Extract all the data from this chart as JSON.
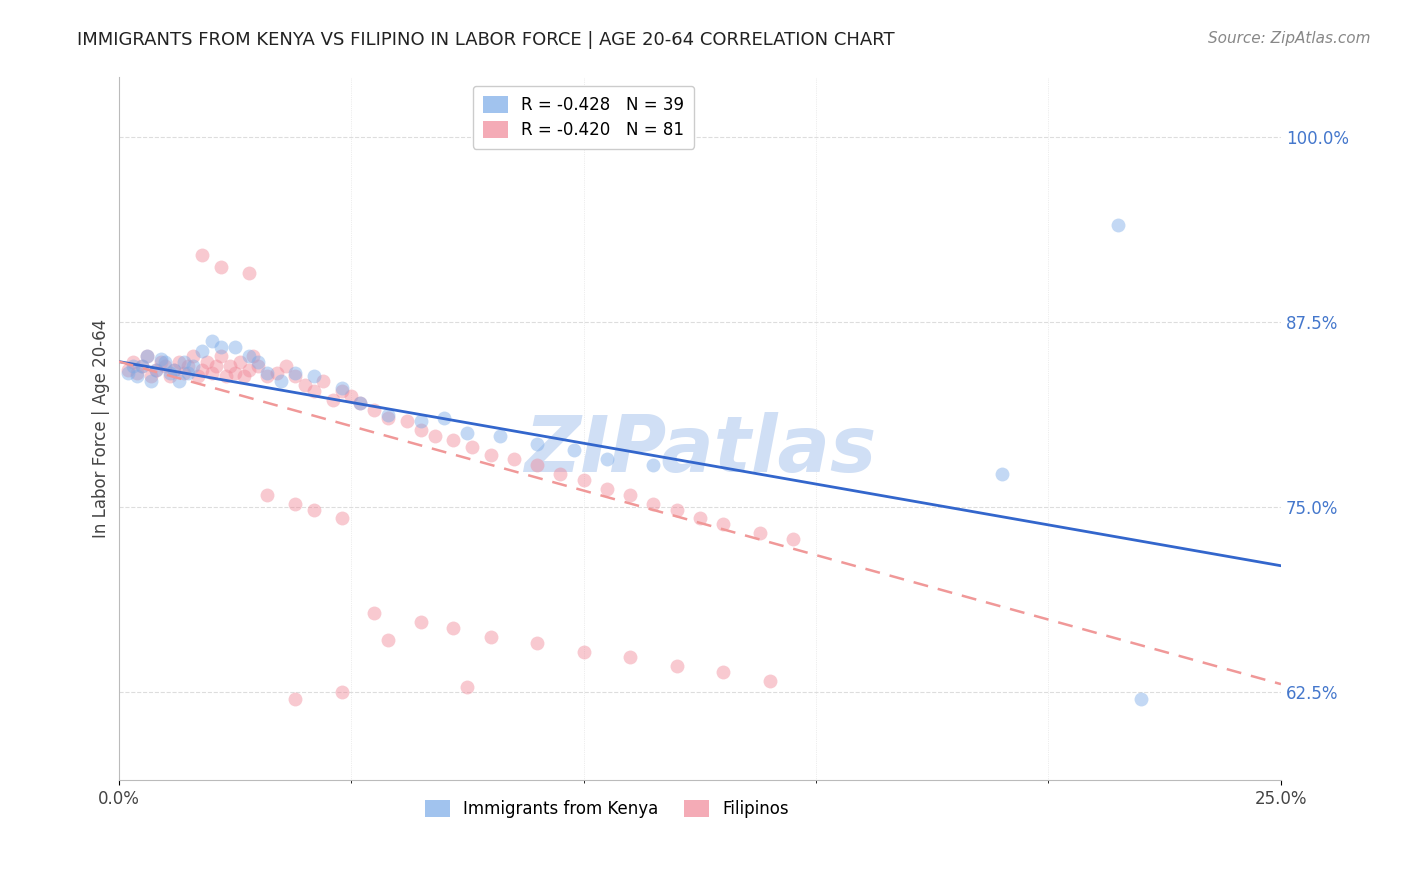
{
  "title": "IMMIGRANTS FROM KENYA VS FILIPINO IN LABOR FORCE | AGE 20-64 CORRELATION CHART",
  "source": "Source: ZipAtlas.com",
  "ylabel_label": "In Labor Force | Age 20-64",
  "ylabel_values_right": [
    1.0,
    0.875,
    0.75,
    0.625
  ],
  "xlim": [
    0.0,
    0.25
  ],
  "ylim": [
    0.565,
    1.04
  ],
  "legend_entries": [
    {
      "label": "R = -0.428   N = 39",
      "color": "#a0b8e8"
    },
    {
      "label": "R = -0.420   N = 81",
      "color": "#f0a0b0"
    }
  ],
  "kenya_scatter_x": [
    0.002,
    0.003,
    0.004,
    0.005,
    0.006,
    0.007,
    0.008,
    0.009,
    0.01,
    0.011,
    0.012,
    0.013,
    0.014,
    0.015,
    0.016,
    0.018,
    0.02,
    0.022,
    0.025,
    0.028,
    0.03,
    0.032,
    0.035,
    0.038,
    0.042,
    0.048,
    0.052,
    0.058,
    0.065,
    0.07,
    0.075,
    0.082,
    0.09,
    0.098,
    0.105,
    0.115,
    0.19,
    0.215,
    0.22
  ],
  "kenya_scatter_y": [
    0.84,
    0.845,
    0.838,
    0.845,
    0.852,
    0.835,
    0.842,
    0.85,
    0.848,
    0.84,
    0.842,
    0.835,
    0.848,
    0.84,
    0.845,
    0.855,
    0.862,
    0.858,
    0.858,
    0.852,
    0.848,
    0.84,
    0.835,
    0.84,
    0.838,
    0.83,
    0.82,
    0.812,
    0.808,
    0.81,
    0.8,
    0.798,
    0.792,
    0.788,
    0.782,
    0.778,
    0.772,
    0.94,
    0.62
  ],
  "filipino_scatter_x": [
    0.002,
    0.003,
    0.004,
    0.005,
    0.006,
    0.007,
    0.008,
    0.009,
    0.01,
    0.011,
    0.012,
    0.013,
    0.014,
    0.015,
    0.016,
    0.017,
    0.018,
    0.019,
    0.02,
    0.021,
    0.022,
    0.023,
    0.024,
    0.025,
    0.026,
    0.027,
    0.028,
    0.029,
    0.03,
    0.032,
    0.034,
    0.036,
    0.038,
    0.04,
    0.042,
    0.044,
    0.046,
    0.048,
    0.05,
    0.052,
    0.055,
    0.058,
    0.062,
    0.065,
    0.068,
    0.072,
    0.076,
    0.08,
    0.085,
    0.09,
    0.095,
    0.1,
    0.105,
    0.11,
    0.115,
    0.12,
    0.125,
    0.13,
    0.138,
    0.145,
    0.018,
    0.022,
    0.028,
    0.032,
    0.038,
    0.042,
    0.048,
    0.055,
    0.065,
    0.072,
    0.08,
    0.09,
    0.1,
    0.11,
    0.12,
    0.13,
    0.14,
    0.058,
    0.075,
    0.048,
    0.038
  ],
  "filipino_scatter_y": [
    0.842,
    0.848,
    0.84,
    0.845,
    0.852,
    0.838,
    0.842,
    0.848,
    0.845,
    0.838,
    0.842,
    0.848,
    0.84,
    0.845,
    0.852,
    0.838,
    0.842,
    0.848,
    0.84,
    0.845,
    0.852,
    0.838,
    0.845,
    0.84,
    0.848,
    0.838,
    0.842,
    0.852,
    0.845,
    0.838,
    0.84,
    0.845,
    0.838,
    0.832,
    0.828,
    0.835,
    0.822,
    0.828,
    0.825,
    0.82,
    0.815,
    0.81,
    0.808,
    0.802,
    0.798,
    0.795,
    0.79,
    0.785,
    0.782,
    0.778,
    0.772,
    0.768,
    0.762,
    0.758,
    0.752,
    0.748,
    0.742,
    0.738,
    0.732,
    0.728,
    0.92,
    0.912,
    0.908,
    0.758,
    0.752,
    0.748,
    0.742,
    0.678,
    0.672,
    0.668,
    0.662,
    0.658,
    0.652,
    0.648,
    0.642,
    0.638,
    0.632,
    0.66,
    0.628,
    0.625,
    0.62
  ],
  "kenya_line_x": [
    0.0,
    0.25
  ],
  "kenya_line_y": [
    0.848,
    0.71
  ],
  "filipino_line_x": [
    0.0,
    0.25
  ],
  "filipino_line_y": [
    0.848,
    0.63
  ],
  "kenya_color": "#7aaae8",
  "filipino_color": "#f08898",
  "kenya_line_color": "#3366cc",
  "filipino_line_color": "#f09898",
  "watermark": "ZIPatlas",
  "watermark_color": "#d0dff5",
  "grid_color": "#dddddd",
  "background_color": "#ffffff",
  "scatter_size": 100,
  "scatter_alpha": 0.45,
  "right_tick_color": "#4477cc",
  "title_fontsize": 13,
  "source_fontsize": 11,
  "axis_fontsize": 12,
  "legend_fontsize": 12
}
